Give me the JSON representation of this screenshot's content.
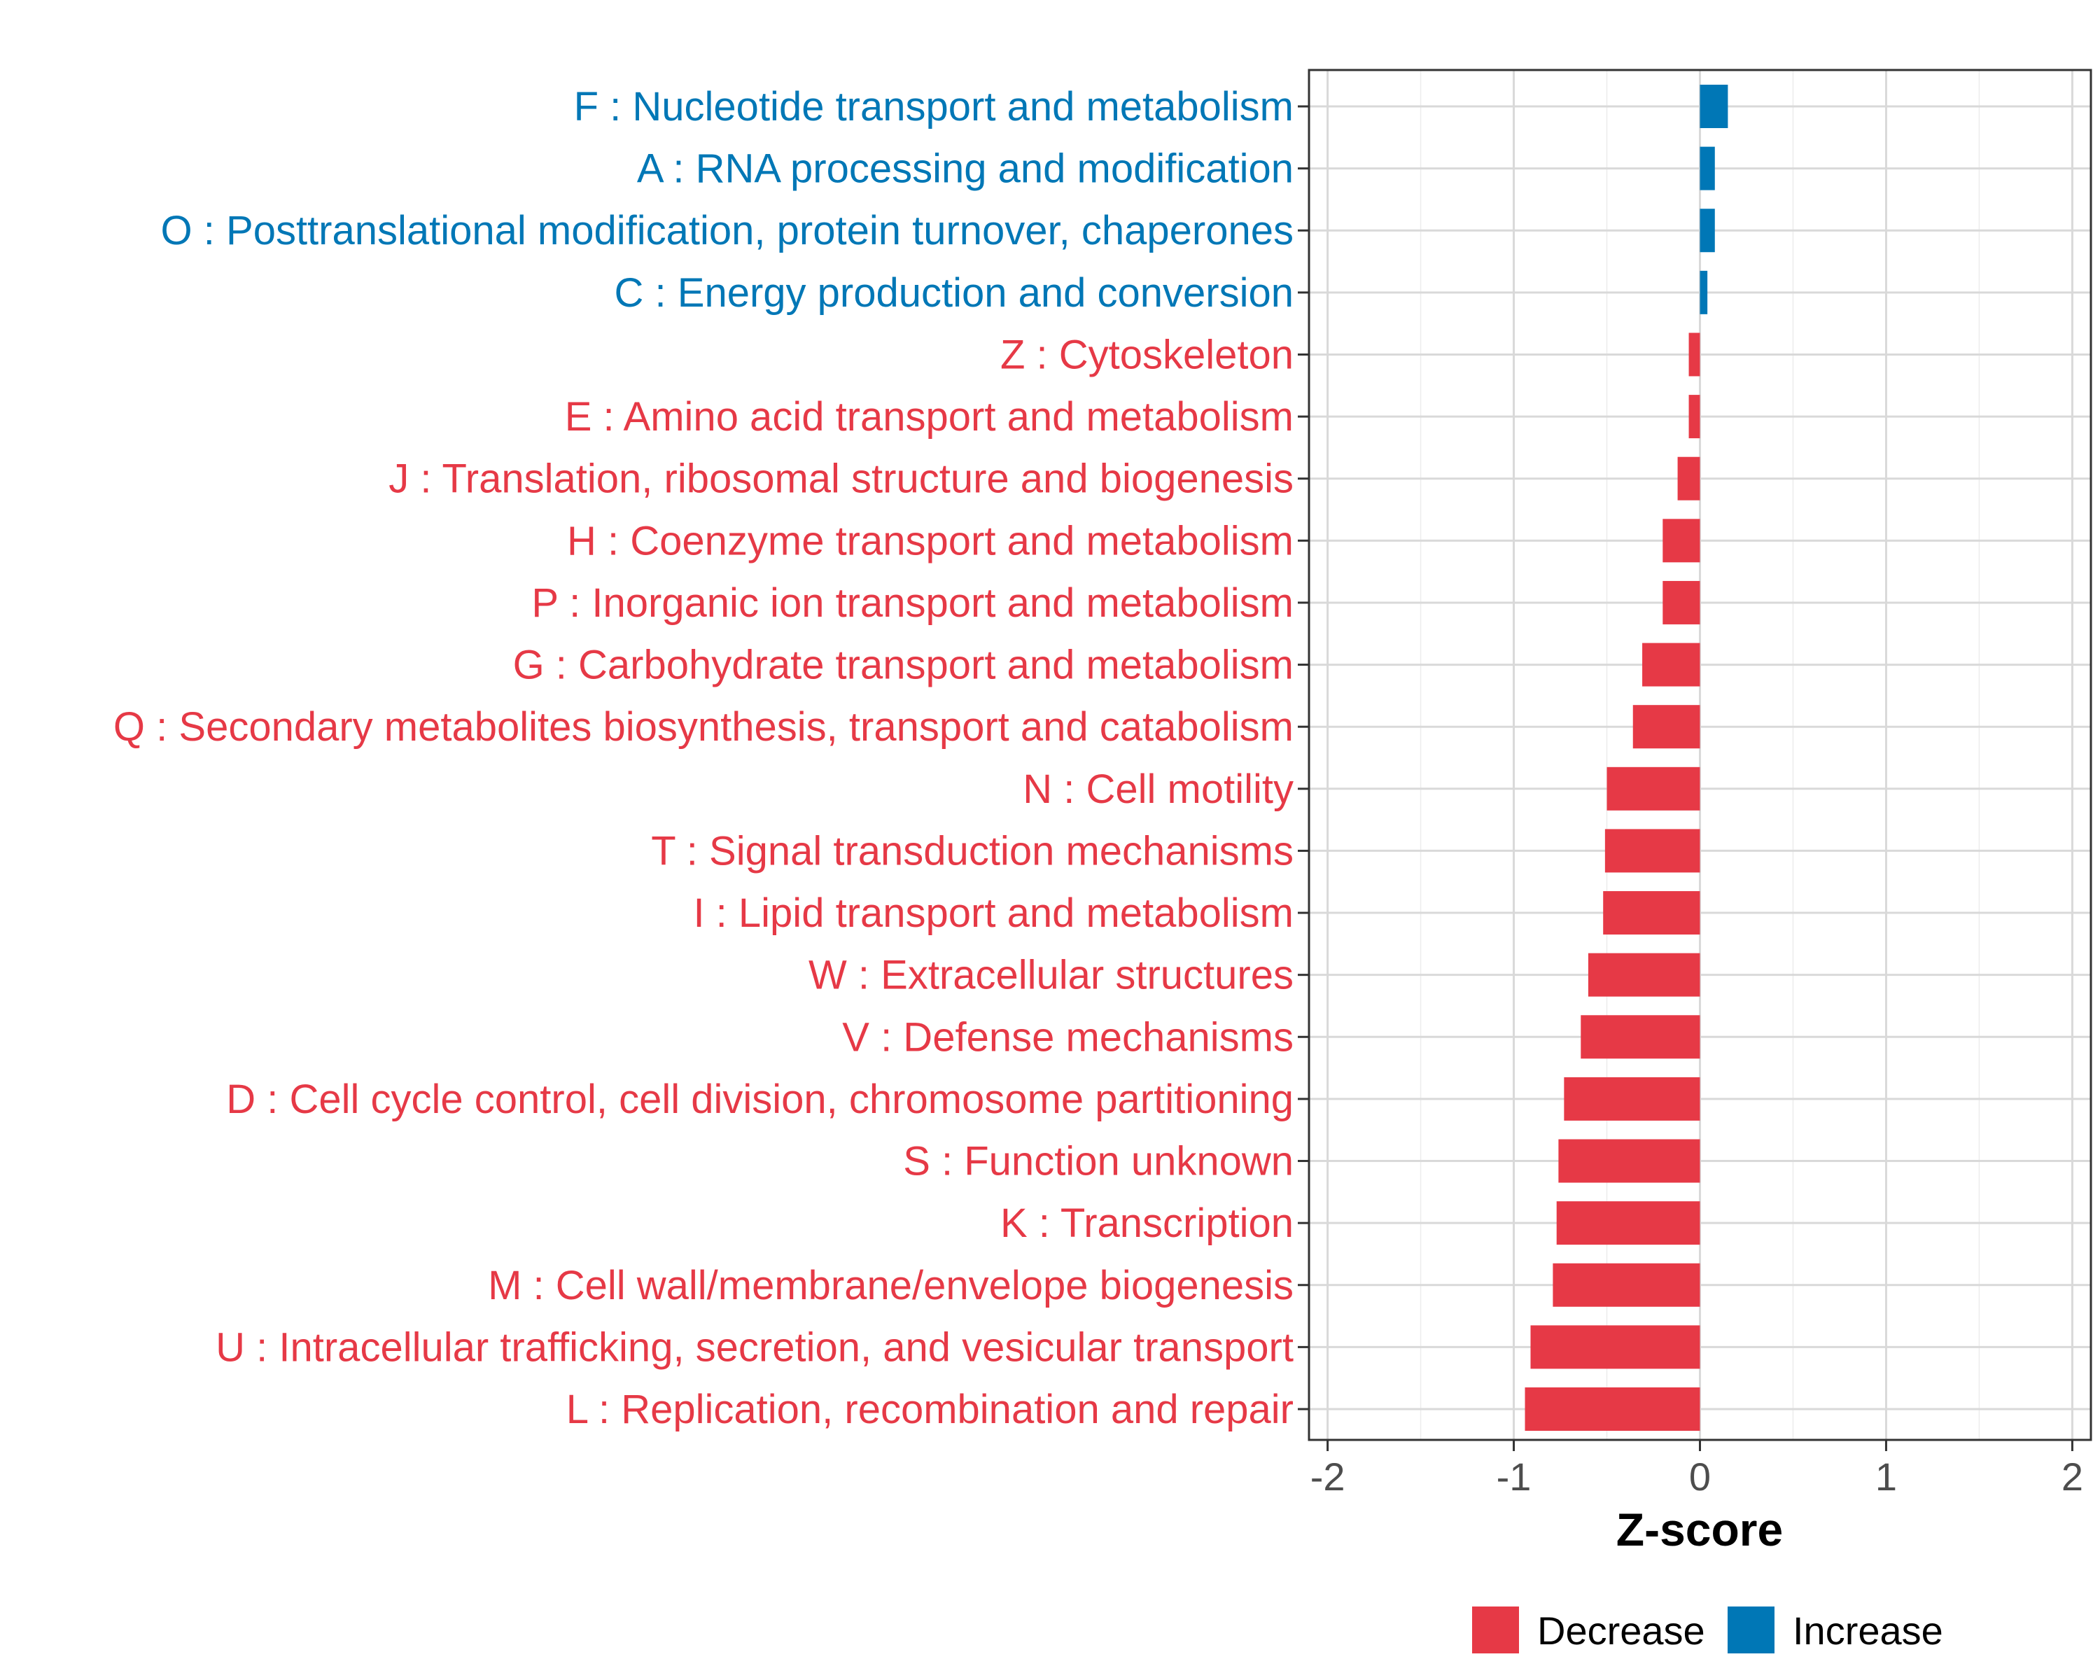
{
  "chart_data": {
    "type": "bar",
    "orientation": "horizontal",
    "title": "",
    "xlabel": "Z-score",
    "ylabel": "",
    "xlim": [
      -2.1,
      2.1
    ],
    "x_ticks": [
      -2,
      -1,
      0,
      1,
      2
    ],
    "x_tick_labels": [
      "-2",
      "-1",
      "0",
      "1",
      "2"
    ],
    "grid": true,
    "categories": [
      "F : Nucleotide transport and metabolism",
      "A : RNA processing and modification",
      "O : Posttranslational modification, protein turnover, chaperones",
      "C : Energy production and conversion",
      "Z : Cytoskeleton",
      "E : Amino acid transport and metabolism",
      "J : Translation, ribosomal structure and biogenesis",
      "H : Coenzyme transport and metabolism",
      "P : Inorganic ion transport and metabolism",
      "G : Carbohydrate transport and metabolism",
      "Q : Secondary metabolites biosynthesis, transport and catabolism",
      "N : Cell motility",
      "T : Signal transduction mechanisms",
      "I : Lipid transport and metabolism",
      "W : Extracellular structures",
      "V : Defense mechanisms",
      "D : Cell cycle control, cell division, chromosome partitioning",
      "S : Function unknown",
      "K : Transcription",
      "M : Cell wall/membrane/envelope biogenesis",
      "U : Intracellular trafficking, secretion, and vesicular transport",
      "L : Replication, recombination and repair"
    ],
    "values": [
      0.15,
      0.08,
      0.08,
      0.04,
      -0.06,
      -0.06,
      -0.12,
      -0.2,
      -0.2,
      -0.31,
      -0.36,
      -0.5,
      -0.51,
      -0.52,
      -0.6,
      -0.64,
      -0.73,
      -0.76,
      -0.77,
      -0.79,
      -0.91,
      -0.94
    ],
    "groups": [
      "Increase",
      "Increase",
      "Increase",
      "Increase",
      "Decrease",
      "Decrease",
      "Decrease",
      "Decrease",
      "Decrease",
      "Decrease",
      "Decrease",
      "Decrease",
      "Decrease",
      "Decrease",
      "Decrease",
      "Decrease",
      "Decrease",
      "Decrease",
      "Decrease",
      "Decrease",
      "Decrease",
      "Decrease"
    ],
    "legend": {
      "position": "bottom",
      "entries": [
        {
          "label": "Decrease",
          "color": "#E63946"
        },
        {
          "label": "Increase",
          "color": "#0077B6"
        }
      ]
    }
  }
}
